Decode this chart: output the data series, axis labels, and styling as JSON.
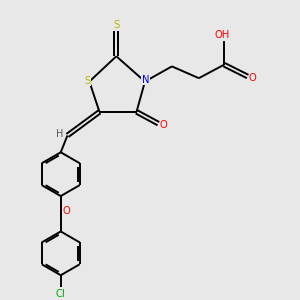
{
  "background_color": "#e8e8e8",
  "bond_color": "#000000",
  "atom_colors": {
    "S": "#b8b800",
    "N": "#0000ff",
    "O": "#ff0000",
    "Cl": "#00aa00",
    "C": "#000000",
    "H": "#555555"
  },
  "bond_width": 1.4,
  "figsize": [
    3.0,
    3.0
  ],
  "dpi": 100
}
